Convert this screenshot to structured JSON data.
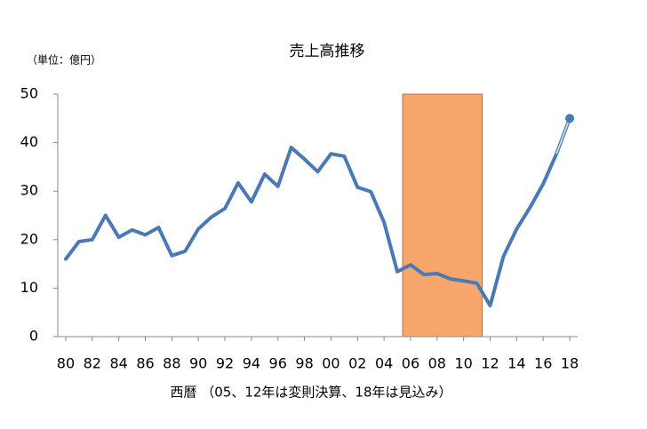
{
  "chart_data": {
    "type": "line",
    "title": "売上高推移",
    "y_label": "（単位：億円）",
    "x_label": "西暦 （05、12年は変則決算、18年は見込み）",
    "x": [
      1980,
      1981,
      1982,
      1983,
      1984,
      1985,
      1986,
      1987,
      1988,
      1989,
      1990,
      1991,
      1992,
      1993,
      1994,
      1995,
      1996,
      1997,
      1998,
      1999,
      2000,
      2001,
      2002,
      2003,
      2004,
      2005,
      2006,
      2007,
      2008,
      2009,
      2010,
      2011,
      2012,
      2013,
      2014,
      2015,
      2016,
      2017,
      2018
    ],
    "values": [
      16,
      19.6,
      20,
      25,
      20.5,
      22,
      21,
      22.5,
      16.7,
      17.6,
      22.2,
      24.7,
      26.4,
      31.7,
      27.8,
      33.5,
      31,
      39,
      36.6,
      34,
      37.7,
      37.2,
      30.8,
      29.9,
      23.6,
      13.4,
      14.8,
      12.8,
      13,
      11.9,
      11.5,
      11,
      6.4,
      16.5,
      22.2,
      26.6,
      31.5,
      37.7,
      45
    ],
    "color": "#4a7ab5",
    "estimate_from": 2017,
    "shade": {
      "x": [
        2005.4,
        2011.4
      ],
      "color": "#f9a66c"
    },
    "xlim": [
      1979.4,
      2018.6
    ],
    "xticks": [
      {
        "value": 1980,
        "label": "80"
      },
      {
        "value": 1982,
        "label": "82"
      },
      {
        "value": 1984,
        "label": "84"
      },
      {
        "value": 1986,
        "label": "86"
      },
      {
        "value": 1988,
        "label": "88"
      },
      {
        "value": 1990,
        "label": "90"
      },
      {
        "value": 1992,
        "label": "92"
      },
      {
        "value": 1994,
        "label": "94"
      },
      {
        "value": 1996,
        "label": "96"
      },
      {
        "value": 1998,
        "label": "98"
      },
      {
        "value": 2000,
        "label": "00"
      },
      {
        "value": 2002,
        "label": "02"
      },
      {
        "value": 2004,
        "label": "04"
      },
      {
        "value": 2006,
        "label": "06"
      },
      {
        "value": 2008,
        "label": "08"
      },
      {
        "value": 2010,
        "label": "10"
      },
      {
        "value": 2012,
        "label": "12"
      },
      {
        "value": 2014,
        "label": "14"
      },
      {
        "value": 2016,
        "label": "16"
      },
      {
        "value": 2018,
        "label": "18"
      }
    ],
    "ylim": [
      0,
      50
    ],
    "yticks": [
      0,
      10,
      20,
      30,
      40,
      50
    ]
  }
}
